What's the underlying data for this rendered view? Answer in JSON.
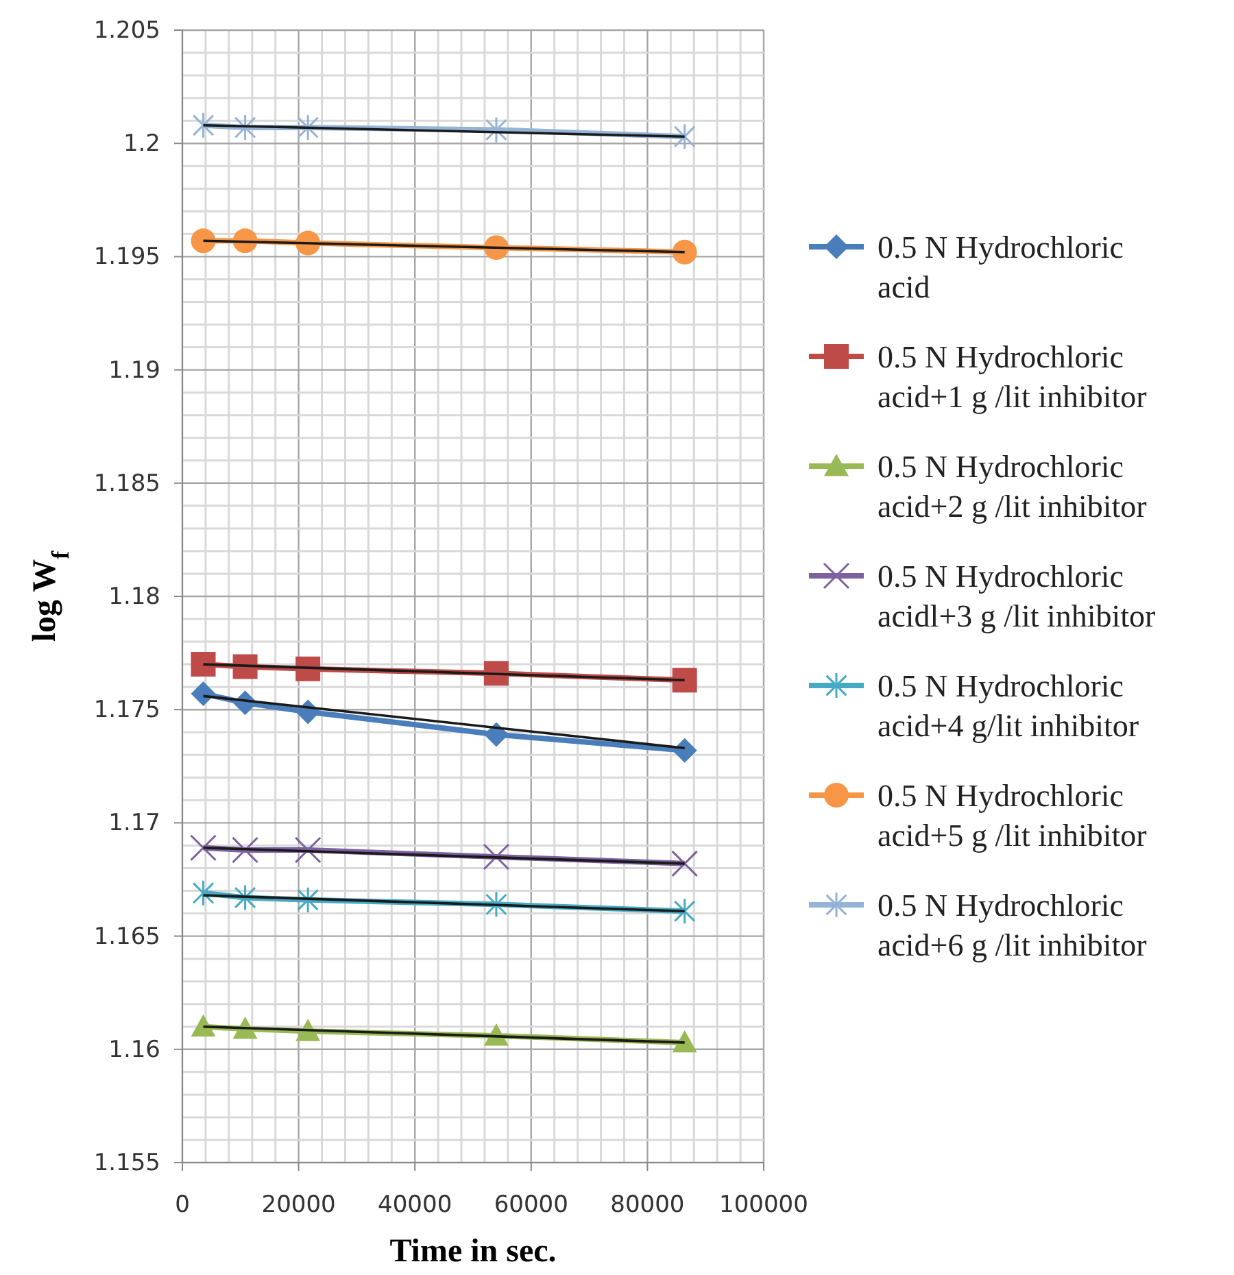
{
  "chart_data": {
    "type": "line",
    "xlabel": "Time in sec.",
    "ylabel": "log W$_{f}$",
    "xlim": [
      0,
      100000
    ],
    "xticks": [
      0,
      20000,
      40000,
      60000,
      80000,
      100000
    ],
    "ylim": [
      1.155,
      1.205
    ],
    "yticks": [
      1.155,
      1.16,
      1.165,
      1.17,
      1.175,
      1.18,
      1.185,
      1.19,
      1.195,
      1.2,
      1.205
    ],
    "grid": true,
    "legend": "right",
    "series": [
      {
        "name": "0.5 N Hydrochloric acid",
        "color": "#4a7ebb",
        "marker": "diamond",
        "x": [
          3600,
          10800,
          21600,
          54000,
          86400
        ],
        "values": [
          1.1757,
          1.1753,
          1.1749,
          1.1739,
          1.1732
        ]
      },
      {
        "name": "0.5 N Hydrochloric acid+1 g /lit inhibitor",
        "color": "#be4b48",
        "marker": "square",
        "x": [
          3600,
          10800,
          21600,
          54000,
          86400
        ],
        "values": [
          1.177,
          1.1769,
          1.1768,
          1.1766,
          1.1763
        ]
      },
      {
        "name": "0.5 N Hydrochloric acid+2 g /lit inhibitor",
        "color": "#98b954",
        "marker": "triangle",
        "x": [
          3600,
          10800,
          21600,
          54000,
          86400
        ],
        "values": [
          1.161,
          1.1609,
          1.1608,
          1.1606,
          1.1603
        ]
      },
      {
        "name": "0.5 N Hydrochloric acidl+3 g /lit inhibitor",
        "color": "#7d60a0",
        "marker": "x",
        "x": [
          3600,
          10800,
          21600,
          54000,
          86400
        ],
        "values": [
          1.1689,
          1.1688,
          1.1688,
          1.1685,
          1.1682
        ]
      },
      {
        "name": "0.5 N Hydrochloric acid+4 g/lit inhibitor",
        "color": "#46aac5",
        "marker": "cross",
        "x": [
          3600,
          10800,
          21600,
          54000,
          86400
        ],
        "values": [
          1.1669,
          1.1667,
          1.1666,
          1.1664,
          1.1661
        ]
      },
      {
        "name": "0.5 N Hydrochloric acid+5 g /lit inhibitor",
        "color": "#f79646",
        "marker": "circle",
        "x": [
          3600,
          10800,
          21600,
          54000,
          86400
        ],
        "values": [
          1.1957,
          1.1957,
          1.1956,
          1.1954,
          1.1952
        ]
      },
      {
        "name": "0.5 N Hydrochloric acid+6 g /lit inhibitor",
        "color": "#95b3d7",
        "marker": "cross",
        "x": [
          3600,
          10800,
          21600,
          54000,
          86400
        ],
        "values": [
          1.2008,
          1.2007,
          1.2007,
          1.2006,
          1.2003
        ]
      },
      {
        "color": "#1a1a1a",
        "marker": "none",
        "x": [
          3600,
          86400
        ],
        "values": [
          1.1756,
          1.1733
        ]
      },
      {
        "color": "#1a1a1a",
        "marker": "none",
        "x": [
          3600,
          86400
        ],
        "values": [
          1.177,
          1.1763
        ]
      },
      {
        "color": "#1a1a1a",
        "marker": "none",
        "x": [
          3600,
          86400
        ],
        "values": [
          1.161,
          1.1603
        ]
      },
      {
        "color": "#1a1a1a",
        "marker": "none",
        "x": [
          3600,
          86400
        ],
        "values": [
          1.1689,
          1.1682
        ]
      },
      {
        "color": "#1a1a1a",
        "marker": "none",
        "x": [
          3600,
          86400
        ],
        "values": [
          1.1668,
          1.1661
        ]
      },
      {
        "color": "#1a1a1a",
        "marker": "none",
        "x": [
          3600,
          86400
        ],
        "values": [
          1.1957,
          1.1952
        ]
      },
      {
        "color": "#1a1a1a",
        "marker": "none",
        "x": [
          3600,
          86400
        ],
        "values": [
          1.2008,
          1.2003
        ]
      }
    ]
  }
}
